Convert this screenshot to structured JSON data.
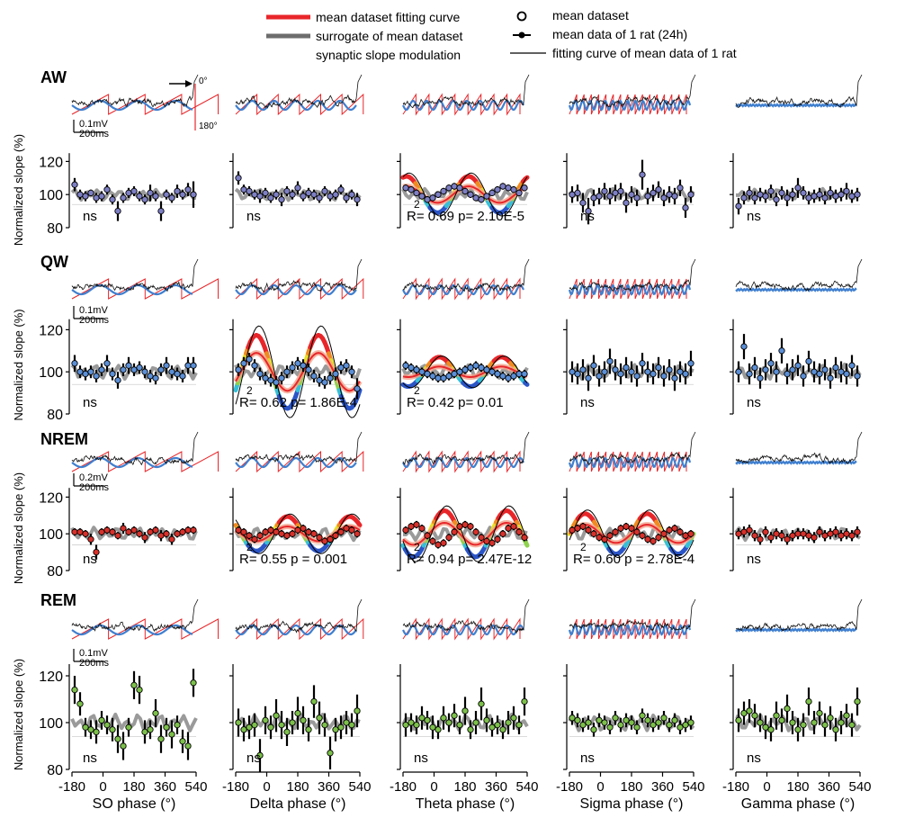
{
  "legend": {
    "items": [
      {
        "label": "mean dataset fitting curve",
        "color": "#e8262a",
        "kind": "thick-line"
      },
      {
        "label": "surrogate of mean dataset",
        "color": "#6d6d6d",
        "kind": "thick-line"
      },
      {
        "label": "synaptic slope modulation",
        "color": "rainbow",
        "kind": "gradient-line"
      },
      {
        "label": "mean dataset",
        "color": "#000000",
        "kind": "open-circle"
      },
      {
        "label": "mean data of 1 rat (24h)",
        "color": "#000000",
        "kind": "dot-errorbar"
      },
      {
        "label": "fitting curve of mean data of 1 rat",
        "color": "#000000",
        "kind": "thin-line"
      }
    ]
  },
  "scale_bars": {
    "time": "200ms",
    "volt_a": "0.1mV",
    "volt_b": "0.2mV"
  },
  "phase_markers": {
    "top": "0°",
    "bottom": "180°"
  },
  "chart_data": {
    "type": "scatter",
    "ylabel": "Normalized slope (%)",
    "ylim": [
      80,
      130
    ],
    "yticks": [
      80,
      100,
      120
    ],
    "xlim": [
      -180,
      540
    ],
    "xticks": [
      -180,
      0,
      180,
      360,
      540
    ],
    "xlabels": [
      "SO phase (°)",
      "Delta phase (°)",
      "Theta phase (°)",
      "Sigma phase (°)",
      "Gamma phase (°)"
    ],
    "states": [
      {
        "name": "AW",
        "marker_color": "#7d7fc4",
        "volt": "0.1mV"
      },
      {
        "name": "QW",
        "marker_color": "#5b8fd6",
        "volt": "0.1mV"
      },
      {
        "name": "NREM",
        "marker_color": "#d8312b",
        "volt": "0.2mV"
      },
      {
        "name": "REM",
        "marker_color": "#7cc04a",
        "volt": "0.1mV"
      }
    ],
    "stats": [
      [
        "ns",
        "ns",
        "R= 0.69 p= 2.10E-5",
        "ns",
        "ns"
      ],
      [
        "ns",
        "R= 0.62 p= 1.86E-4",
        "R= 0.42   p= 0.01",
        "ns",
        "ns"
      ],
      [
        "ns",
        "R= 0.55 p = 0.001",
        "R= 0.94 p= 2.47E-12",
        "R= 0.60 p = 2.78E-4",
        "ns"
      ],
      [
        "ns",
        "ns",
        "ns",
        "ns",
        "ns"
      ]
    ],
    "superscript": "2",
    "significant": [
      [
        false,
        false,
        true,
        false,
        false
      ],
      [
        false,
        true,
        true,
        false,
        false
      ],
      [
        false,
        true,
        true,
        true,
        false
      ],
      [
        false,
        false,
        false,
        false,
        false
      ]
    ],
    "amplitude": [
      [
        0,
        0,
        5,
        0,
        0
      ],
      [
        0,
        9,
        2.5,
        0,
        0
      ],
      [
        0,
        4,
        6,
        5,
        0
      ],
      [
        0,
        0,
        0,
        0,
        0
      ]
    ],
    "phase_shift": [
      [
        0,
        0,
        200,
        0,
        0
      ],
      [
        0,
        300,
        30,
        0,
        0
      ],
      [
        0,
        120,
        60,
        270,
        0
      ],
      [
        0,
        0,
        0,
        0,
        0
      ]
    ],
    "points": [
      [
        [
          106,
          100,
          99,
          101,
          98,
          99,
          103,
          97,
          90,
          98,
          101,
          102,
          99,
          97,
          101,
          99,
          90,
          100,
          98,
          102,
          100,
          103,
          100
        ],
        [
          110,
          103,
          102,
          100,
          99,
          101,
          98,
          100,
          97,
          102,
          100,
          104,
          99,
          101,
          100,
          98,
          102,
          99,
          100,
          103,
          98,
          100,
          97
        ],
        [
          104,
          103,
          101,
          99,
          97,
          98,
          100,
          102,
          104,
          105,
          104,
          102,
          100,
          98,
          97,
          99,
          101,
          103,
          105,
          104,
          103,
          101,
          104
        ],
        [
          100,
          101,
          95,
          90,
          98,
          99,
          102,
          99,
          101,
          102,
          95,
          100,
          98,
          112,
          99,
          101,
          103,
          98,
          100,
          99,
          104,
          92,
          100
        ],
        [
          93,
          98,
          101,
          98,
          100,
          99,
          102,
          97,
          101,
          98,
          100,
          104,
          101,
          98,
          99,
          100,
          98,
          101,
          99,
          100,
          102,
          99,
          100
        ]
      ],
      [
        [
          104,
          100,
          99,
          100,
          98,
          101,
          104,
          99,
          96,
          101,
          103,
          101,
          102,
          100,
          98,
          97,
          101,
          103,
          100,
          99,
          98,
          103,
          103
        ],
        [
          101,
          104,
          106,
          103,
          99,
          97,
          96,
          95,
          97,
          100,
          102,
          104,
          103,
          101,
          98,
          96,
          95,
          97,
          99,
          102,
          103,
          100,
          92
        ],
        [
          103,
          102,
          101,
          100,
          99,
          98,
          97,
          97,
          98,
          99,
          100,
          101,
          102,
          103,
          102,
          101,
          100,
          99,
          98,
          97,
          98,
          99,
          99
        ],
        [
          100,
          99,
          101,
          97,
          103,
          98,
          100,
          105,
          101,
          99,
          102,
          100,
          98,
          104,
          100,
          99,
          102,
          98,
          101,
          97,
          100,
          99,
          104
        ],
        [
          100,
          112,
          99,
          102,
          97,
          101,
          104,
          100,
          110,
          99,
          101,
          103,
          98,
          105,
          100,
          99,
          101,
          97,
          102,
          100,
          99,
          103,
          98
        ]
      ],
      [
        [
          101,
          101,
          100,
          97,
          90,
          101,
          102,
          101,
          99,
          103,
          101,
          102,
          100,
          98,
          101,
          102,
          99,
          100,
          97,
          100,
          101,
          102,
          102
        ],
        [
          102,
          101,
          99,
          97,
          99,
          101,
          102,
          101,
          100,
          99,
          100,
          102,
          103,
          101,
          100,
          98,
          96,
          97,
          99,
          101,
          103,
          102,
          100
        ],
        [
          102,
          104,
          105,
          103,
          99,
          96,
          94,
          95,
          98,
          101,
          104,
          105,
          104,
          101,
          98,
          96,
          95,
          97,
          100,
          103,
          104,
          101,
          98
        ],
        [
          102,
          103,
          104,
          102,
          100,
          98,
          97,
          99,
          101,
          103,
          104,
          103,
          101,
          99,
          97,
          96,
          98,
          100,
          102,
          103,
          101,
          99,
          100
        ],
        [
          100,
          101,
          102,
          99,
          97,
          101,
          98,
          100,
          99,
          97,
          99,
          100,
          100,
          99,
          98,
          101,
          99,
          100,
          101,
          99,
          100,
          99,
          101
        ]
      ],
      [
        [
          114,
          108,
          98,
          97,
          96,
          101,
          99,
          97,
          93,
          90,
          98,
          116,
          114,
          96,
          97,
          104,
          93,
          98,
          95,
          99,
          92,
          90,
          117
        ],
        [
          100,
          97,
          98,
          99,
          86,
          101,
          98,
          103,
          99,
          96,
          100,
          104,
          101,
          97,
          109,
          102,
          99,
          87,
          97,
          98,
          100,
          99,
          105
        ],
        [
          99,
          100,
          99,
          102,
          101,
          98,
          97,
          102,
          100,
          103,
          99,
          105,
          97,
          100,
          108,
          101,
          98,
          99,
          97,
          100,
          102,
          99,
          109
        ],
        [
          102,
          101,
          99,
          100,
          97,
          101,
          100,
          98,
          102,
          99,
          101,
          100,
          98,
          103,
          101,
          99,
          100,
          102,
          99,
          101,
          98,
          99,
          100
        ],
        [
          101,
          104,
          105,
          103,
          100,
          98,
          97,
          103,
          101,
          106,
          100,
          97,
          99,
          109,
          100,
          104,
          99,
          102,
          97,
          100,
          103,
          99,
          109
        ]
      ]
    ],
    "errors": [
      [
        [
          4,
          3,
          3,
          2,
          3,
          3,
          3,
          3,
          6,
          3,
          3,
          3,
          3,
          3,
          5,
          3,
          6,
          3,
          3,
          4,
          3,
          4,
          8
        ],
        [
          4,
          3,
          3,
          3,
          4,
          3,
          3,
          3,
          4,
          3,
          3,
          4,
          3,
          3,
          3,
          3,
          3,
          3,
          3,
          3,
          3,
          3,
          4
        ],
        [
          2,
          2,
          2,
          2,
          2,
          2,
          2,
          2,
          2,
          2,
          2,
          2,
          2,
          2,
          2,
          2,
          2,
          2,
          2,
          2,
          2,
          2,
          2
        ],
        [
          5,
          5,
          6,
          8,
          5,
          5,
          5,
          5,
          5,
          5,
          6,
          5,
          5,
          9,
          5,
          5,
          5,
          5,
          5,
          5,
          5,
          6,
          5
        ],
        [
          5,
          4,
          4,
          4,
          4,
          4,
          4,
          4,
          4,
          5,
          4,
          6,
          4,
          4,
          4,
          4,
          4,
          4,
          4,
          4,
          5,
          4,
          4
        ]
      ],
      [
        [
          4,
          3,
          3,
          3,
          3,
          3,
          4,
          3,
          4,
          3,
          4,
          3,
          3,
          3,
          3,
          3,
          3,
          4,
          3,
          3,
          3,
          4,
          4
        ],
        [
          3,
          3,
          3,
          3,
          3,
          3,
          3,
          3,
          3,
          3,
          3,
          3,
          3,
          3,
          3,
          3,
          3,
          3,
          3,
          3,
          3,
          3,
          5
        ],
        [
          2,
          2,
          2,
          2,
          2,
          2,
          2,
          2,
          2,
          2,
          2,
          2,
          2,
          2,
          2,
          2,
          2,
          2,
          2,
          2,
          2,
          2,
          2
        ],
        [
          5,
          5,
          5,
          6,
          5,
          5,
          5,
          6,
          5,
          5,
          5,
          5,
          5,
          5,
          5,
          5,
          5,
          5,
          5,
          6,
          5,
          5,
          6
        ],
        [
          5,
          6,
          5,
          5,
          5,
          5,
          5,
          5,
          6,
          5,
          5,
          5,
          5,
          5,
          5,
          5,
          5,
          5,
          5,
          5,
          5,
          5,
          5
        ]
      ],
      [
        [
          2,
          2,
          2,
          3,
          4,
          2,
          2,
          2,
          2,
          3,
          2,
          2,
          2,
          3,
          2,
          2,
          3,
          2,
          3,
          2,
          2,
          2,
          2
        ],
        [
          2,
          2,
          2,
          2,
          2,
          2,
          2,
          2,
          2,
          2,
          2,
          2,
          2,
          2,
          2,
          2,
          2,
          2,
          2,
          2,
          2,
          2,
          2
        ],
        [
          2,
          2,
          2,
          2,
          2,
          2,
          2,
          2,
          2,
          2,
          2,
          2,
          2,
          2,
          2,
          2,
          2,
          2,
          2,
          2,
          2,
          2,
          2
        ],
        [
          2,
          2,
          2,
          2,
          2,
          2,
          2,
          2,
          2,
          2,
          2,
          2,
          2,
          2,
          2,
          2,
          2,
          2,
          2,
          2,
          2,
          2,
          2
        ],
        [
          3,
          3,
          3,
          3,
          3,
          3,
          3,
          3,
          3,
          3,
          3,
          3,
          3,
          3,
          3,
          3,
          3,
          3,
          3,
          3,
          3,
          3,
          3
        ]
      ],
      [
        [
          6,
          5,
          4,
          4,
          5,
          4,
          4,
          5,
          6,
          6,
          4,
          6,
          6,
          5,
          4,
          6,
          6,
          4,
          6,
          4,
          5,
          6,
          6
        ],
        [
          6,
          5,
          5,
          5,
          7,
          6,
          5,
          7,
          6,
          6,
          5,
          7,
          6,
          5,
          7,
          7,
          5,
          7,
          5,
          5,
          5,
          5,
          7
        ],
        [
          5,
          4,
          4,
          5,
          4,
          5,
          4,
          5,
          4,
          5,
          4,
          6,
          4,
          5,
          7,
          5,
          4,
          4,
          4,
          5,
          5,
          4,
          6
        ],
        [
          3,
          3,
          3,
          3,
          3,
          3,
          3,
          3,
          3,
          3,
          3,
          3,
          3,
          3,
          3,
          3,
          3,
          3,
          3,
          3,
          3,
          3,
          3
        ],
        [
          5,
          5,
          5,
          5,
          4,
          5,
          5,
          6,
          5,
          6,
          5,
          5,
          5,
          6,
          5,
          5,
          5,
          5,
          5,
          5,
          5,
          5,
          6
        ]
      ]
    ]
  }
}
